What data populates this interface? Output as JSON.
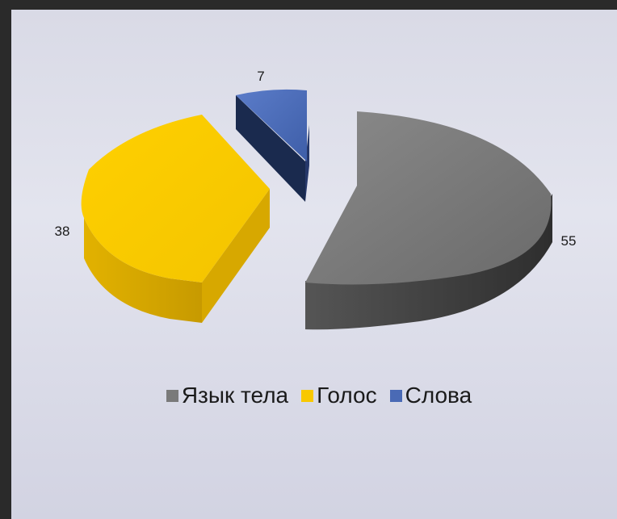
{
  "chart_data": {
    "type": "pie",
    "style": "3d-exploded",
    "categories": [
      "Язык тела",
      "Голос",
      "Слова"
    ],
    "values": [
      55,
      38,
      7
    ],
    "colors": [
      "#7a7a7a",
      "#f8c800",
      "#4a6ab5"
    ],
    "data_labels": [
      "55",
      "38",
      "7"
    ],
    "legend_position": "bottom"
  }
}
